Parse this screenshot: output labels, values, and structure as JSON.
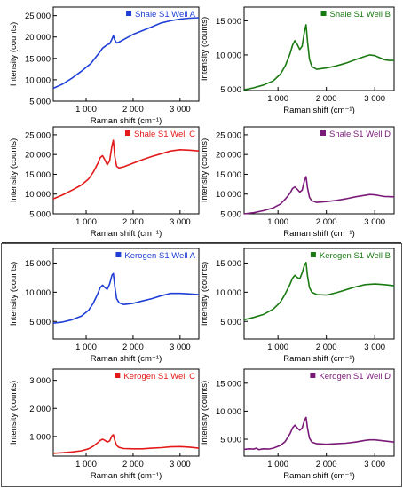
{
  "chart_data": [
    {
      "type": "line",
      "group": "shale",
      "xlabel": "Raman shift (cm⁻¹)",
      "ylabel": "Intensity (counts)",
      "xlim": [
        300,
        3400
      ],
      "ylim": [
        5000,
        27000
      ],
      "xticks": [
        1000,
        2000,
        3000
      ],
      "xtick_labels": [
        "1 000",
        "2 000",
        "3 000"
      ],
      "yticks": [
        10000,
        15000,
        20000,
        25000
      ],
      "ytick_labels": [
        "10 000",
        "15 000",
        "20 000",
        "25 000"
      ],
      "ytick_extra": {
        "value": 5000,
        "label": "5 000"
      },
      "legend_placement": "top-right",
      "series": [
        {
          "name": "Shale S1 Well A",
          "color": "#1f3fd6",
          "x": [
            300,
            500,
            700,
            900,
            1100,
            1200,
            1300,
            1350,
            1400,
            1450,
            1500,
            1550,
            1580,
            1610,
            1650,
            1700,
            1800,
            2000,
            2200,
            2400,
            2600,
            2800,
            3000,
            3200,
            3400
          ],
          "y": [
            8000,
            9000,
            10400,
            12000,
            13800,
            15200,
            16600,
            17400,
            17800,
            18200,
            18400,
            19500,
            20300,
            19300,
            18600,
            18800,
            19400,
            20600,
            21500,
            22400,
            23300,
            23800,
            24200,
            24400,
            24500
          ]
        }
      ]
    },
    {
      "type": "line",
      "group": "shale",
      "xlabel": "Raman shift (cm⁻¹)",
      "ylabel": "Intensity (counts)",
      "xlim": [
        300,
        3400
      ],
      "ylim": [
        4800,
        17000
      ],
      "xticks": [
        1000,
        2000,
        3000
      ],
      "xtick_labels": [
        "1 000",
        "2 000",
        "3 000"
      ],
      "yticks": [
        5000,
        10000,
        15000
      ],
      "ytick_labels": [
        "5 000",
        "10 000",
        "15 000"
      ],
      "legend_placement": "top-right",
      "series": [
        {
          "name": "Shale S1 Well B",
          "color": "#1a7a12",
          "x": [
            300,
            500,
            700,
            900,
            1050,
            1150,
            1250,
            1300,
            1350,
            1400,
            1450,
            1500,
            1550,
            1580,
            1610,
            1650,
            1700,
            1800,
            2000,
            2200,
            2400,
            2600,
            2800,
            2900,
            3000,
            3100,
            3200,
            3300,
            3400
          ],
          "y": [
            4900,
            5200,
            5600,
            6200,
            7200,
            8400,
            10200,
            11400,
            12100,
            11500,
            10800,
            11300,
            13500,
            14400,
            12000,
            9400,
            8300,
            7900,
            8100,
            8400,
            8800,
            9300,
            9800,
            10000,
            9900,
            9600,
            9300,
            9200,
            9200
          ]
        }
      ]
    },
    {
      "type": "line",
      "group": "shale",
      "xlabel": "Raman shift (cm⁻¹)",
      "ylabel": "Intensity (counts)",
      "xlim": [
        300,
        3400
      ],
      "ylim": [
        5000,
        27000
      ],
      "xticks": [
        1000,
        2000,
        3000
      ],
      "xtick_labels": [
        "1 000",
        "2 000",
        "3 000"
      ],
      "yticks": [
        10000,
        15000,
        20000,
        25000
      ],
      "ytick_labels": [
        "10 000",
        "15 000",
        "20 000",
        "25 000"
      ],
      "ytick_extra": {
        "value": 5000,
        "label": "5 000"
      },
      "legend_placement": "top-right",
      "series": [
        {
          "name": "Shale S1 Well C",
          "color": "#e31a1a",
          "x": [
            300,
            500,
            700,
            900,
            1050,
            1150,
            1250,
            1300,
            1350,
            1400,
            1450,
            1500,
            1550,
            1580,
            1610,
            1650,
            1700,
            1800,
            2000,
            2200,
            2400,
            2600,
            2800,
            3000,
            3200,
            3400
          ],
          "y": [
            8800,
            9800,
            11000,
            12300,
            13800,
            15500,
            17800,
            19200,
            19700,
            18600,
            17400,
            18400,
            22200,
            23600,
            19500,
            17000,
            16600,
            16900,
            17800,
            18700,
            19500,
            20200,
            20900,
            21200,
            21100,
            20900
          ]
        }
      ]
    },
    {
      "type": "line",
      "group": "shale",
      "xlabel": "Raman shift (cm⁻¹)",
      "ylabel": "Intensity (counts)",
      "xlim": [
        300,
        3400
      ],
      "ylim": [
        5000,
        27000
      ],
      "xticks": [
        1000,
        2000,
        3000
      ],
      "xtick_labels": [
        "1 000",
        "2 000",
        "3 000"
      ],
      "yticks": [
        10000,
        15000,
        20000,
        25000
      ],
      "ytick_labels": [
        "10 000",
        "15 000",
        "20 000",
        "25 000"
      ],
      "ytick_extra": {
        "value": 5000,
        "label": "5 000"
      },
      "legend_placement": "top-right",
      "series": [
        {
          "name": "Shale S1 Well D",
          "color": "#7a1a78",
          "x": [
            300,
            500,
            700,
            900,
            1050,
            1150,
            1250,
            1300,
            1350,
            1400,
            1450,
            1500,
            1550,
            1580,
            1610,
            1650,
            1700,
            1800,
            2000,
            2200,
            2400,
            2600,
            2800,
            2900,
            3000,
            3100,
            3200,
            3400
          ],
          "y": [
            5000,
            5300,
            5800,
            6500,
            7500,
            8700,
            10200,
            11400,
            11800,
            11200,
            10500,
            11000,
            13500,
            14400,
            11600,
            9200,
            8300,
            7900,
            8100,
            8400,
            8800,
            9300,
            9700,
            9900,
            9800,
            9600,
            9400,
            9300
          ]
        }
      ]
    },
    {
      "type": "line",
      "group": "kerogen",
      "xlabel": "Raman shift (cm⁻¹)",
      "ylabel": "Intensity (counts)",
      "xlim": [
        300,
        3400
      ],
      "ylim": [
        2000,
        17500
      ],
      "xticks": [
        1000,
        2000,
        3000
      ],
      "xtick_labels": [
        "1 000",
        "2 000",
        "3 000"
      ],
      "yticks": [
        5000,
        10000,
        15000
      ],
      "ytick_labels": [
        "5 000",
        "10 000",
        "15 000"
      ],
      "legend_placement": "top-right",
      "series": [
        {
          "name": "Kerogen S1 Well A",
          "color": "#1f3fd6",
          "x": [
            300,
            500,
            700,
            900,
            1050,
            1150,
            1250,
            1300,
            1350,
            1400,
            1450,
            1500,
            1550,
            1580,
            1610,
            1650,
            1700,
            1800,
            2000,
            2200,
            2400,
            2600,
            2800,
            3000,
            3200,
            3400
          ],
          "y": [
            4700,
            4900,
            5300,
            5900,
            6900,
            8100,
            9800,
            10800,
            11200,
            10800,
            10500,
            11400,
            12900,
            13200,
            11000,
            8900,
            8200,
            7900,
            8100,
            8500,
            8900,
            9400,
            9800,
            9800,
            9700,
            9600
          ]
        }
      ]
    },
    {
      "type": "line",
      "group": "kerogen",
      "xlabel": "Raman shift (cm⁻¹)",
      "ylabel": "Intensity (counts)",
      "xlim": [
        300,
        3400
      ],
      "ylim": [
        2000,
        17500
      ],
      "xticks": [
        1000,
        2000,
        3000
      ],
      "xtick_labels": [
        "1 000",
        "2 000",
        "3 000"
      ],
      "yticks": [
        5000,
        10000,
        15000
      ],
      "ytick_labels": [
        "5 000",
        "10 000",
        "15 000"
      ],
      "legend_placement": "top-right",
      "series": [
        {
          "name": "Kerogen S1 Well B",
          "color": "#1a7a12",
          "x": [
            300,
            500,
            700,
            900,
            1050,
            1150,
            1250,
            1300,
            1350,
            1400,
            1450,
            1500,
            1550,
            1580,
            1610,
            1650,
            1700,
            1800,
            2000,
            2200,
            2400,
            2600,
            2800,
            3000,
            3200,
            3400
          ],
          "y": [
            5300,
            5700,
            6200,
            7100,
            8300,
            9700,
            11400,
            12400,
            12900,
            12500,
            12300,
            13300,
            14700,
            15100,
            12800,
            10800,
            10000,
            9600,
            9500,
            9900,
            10400,
            10900,
            11300,
            11400,
            11300,
            11100
          ]
        }
      ]
    },
    {
      "type": "line",
      "group": "kerogen",
      "xlabel": "Raman shift (cm⁻¹)",
      "ylabel": "Intensity (counts)",
      "xlim": [
        300,
        3400
      ],
      "ylim": [
        300,
        3400
      ],
      "xticks": [
        1000,
        2000,
        3000
      ],
      "xtick_labels": [
        "1 000",
        "2 000",
        "3 000"
      ],
      "yticks": [
        1000,
        2000,
        3000
      ],
      "ytick_labels": [
        "1 000",
        "2 000",
        "3 000"
      ],
      "legend_placement": "top-right",
      "series": [
        {
          "name": "Kerogen S1 Well C",
          "color": "#e31a1a",
          "x": [
            300,
            500,
            700,
            900,
            1050,
            1150,
            1250,
            1300,
            1350,
            1400,
            1450,
            1500,
            1550,
            1580,
            1610,
            1650,
            1700,
            1800,
            2000,
            2200,
            2400,
            2600,
            2800,
            3000,
            3200,
            3400
          ],
          "y": [
            400,
            420,
            450,
            490,
            560,
            650,
            780,
            860,
            900,
            860,
            800,
            840,
            1020,
            1060,
            860,
            680,
            610,
            570,
            560,
            560,
            580,
            600,
            630,
            640,
            620,
            580
          ]
        }
      ]
    },
    {
      "type": "line",
      "group": "kerogen",
      "xlabel": "Raman shift (cm⁻¹)",
      "ylabel": "Intensity (counts)",
      "xlim": [
        300,
        3400
      ],
      "ylim": [
        2000,
        17500
      ],
      "xticks": [
        1000,
        2000,
        3000
      ],
      "xtick_labels": [
        "1 000",
        "2 000",
        "3 000"
      ],
      "yticks": [
        5000,
        10000,
        15000
      ],
      "ytick_labels": [
        "5 000",
        "10 000",
        "15 000"
      ],
      "legend_placement": "top-right",
      "series": [
        {
          "name": "Kerogen S1 Well D",
          "color": "#7a1a78",
          "x": [
            300,
            400,
            500,
            550,
            600,
            700,
            800,
            900,
            1050,
            1150,
            1250,
            1300,
            1350,
            1400,
            1450,
            1500,
            1550,
            1580,
            1610,
            1650,
            1700,
            1800,
            2000,
            2200,
            2400,
            2600,
            2800,
            2900,
            3000,
            3100,
            3200,
            3400
          ],
          "y": [
            3200,
            3300,
            3250,
            3400,
            3150,
            3300,
            3250,
            3400,
            3900,
            4600,
            6000,
            7000,
            7500,
            7000,
            6600,
            7000,
            8400,
            8900,
            7000,
            5200,
            4500,
            4200,
            4100,
            4200,
            4300,
            4500,
            4800,
            4900,
            4900,
            4800,
            4700,
            4500
          ]
        }
      ]
    }
  ]
}
